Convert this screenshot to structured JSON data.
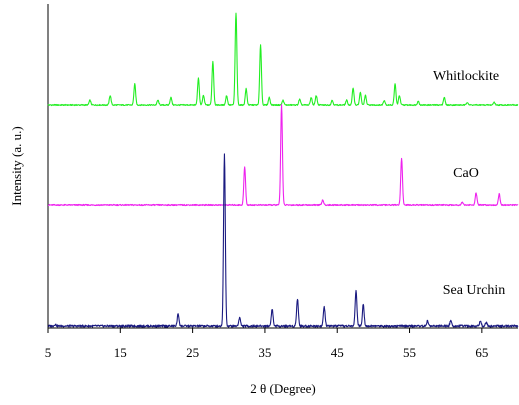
{
  "chart_data": {
    "type": "line",
    "title": "",
    "xlabel": "2 θ (Degree)",
    "ylabel": "Intensity (a. u.)",
    "xlim": [
      5,
      70
    ],
    "xticks": [
      5,
      15,
      25,
      35,
      45,
      55,
      65
    ],
    "grid": false,
    "legend": "none",
    "series": [
      {
        "name": "Whitlockite",
        "color": "#22ee22",
        "baseline_position": 0.7,
        "peaks": [
          [
            10.8,
            0.05
          ],
          [
            13.6,
            0.1
          ],
          [
            17.0,
            0.22
          ],
          [
            20.2,
            0.05
          ],
          [
            22.0,
            0.08
          ],
          [
            25.8,
            0.28
          ],
          [
            26.5,
            0.1
          ],
          [
            27.8,
            0.46
          ],
          [
            29.7,
            0.1
          ],
          [
            31.0,
            0.97
          ],
          [
            32.4,
            0.17
          ],
          [
            34.4,
            0.63
          ],
          [
            35.6,
            0.08
          ],
          [
            37.5,
            0.05
          ],
          [
            39.8,
            0.06
          ],
          [
            41.4,
            0.08
          ],
          [
            42.1,
            0.1
          ],
          [
            44.3,
            0.05
          ],
          [
            46.3,
            0.05
          ],
          [
            47.2,
            0.18
          ],
          [
            48.2,
            0.13
          ],
          [
            48.9,
            0.1
          ],
          [
            51.5,
            0.05
          ],
          [
            53.0,
            0.22
          ],
          [
            53.6,
            0.1
          ],
          [
            56.2,
            0.04
          ],
          [
            59.8,
            0.08
          ],
          [
            63.0,
            0.03
          ],
          [
            66.7,
            0.03
          ]
        ]
      },
      {
        "name": "CaO",
        "color": "#ee22ee",
        "baseline_position": 0.4,
        "peaks": [
          [
            32.2,
            0.38
          ],
          [
            37.3,
            1.0
          ],
          [
            43.0,
            0.05
          ],
          [
            53.9,
            0.47
          ],
          [
            62.3,
            0.03
          ],
          [
            64.2,
            0.12
          ],
          [
            67.4,
            0.11
          ]
        ]
      },
      {
        "name": "Sea Urchin",
        "color": "#1a1a80",
        "baseline_position": 0.03,
        "peaks": [
          [
            6.0,
            0.01
          ],
          [
            23.0,
            0.07
          ],
          [
            29.4,
            1.0
          ],
          [
            31.5,
            0.05
          ],
          [
            36.0,
            0.1
          ],
          [
            39.5,
            0.16
          ],
          [
            43.2,
            0.11
          ],
          [
            47.6,
            0.21
          ],
          [
            48.6,
            0.13
          ],
          [
            57.5,
            0.03
          ],
          [
            60.7,
            0.03
          ],
          [
            64.8,
            0.03
          ],
          [
            65.6,
            0.02
          ]
        ]
      }
    ]
  }
}
